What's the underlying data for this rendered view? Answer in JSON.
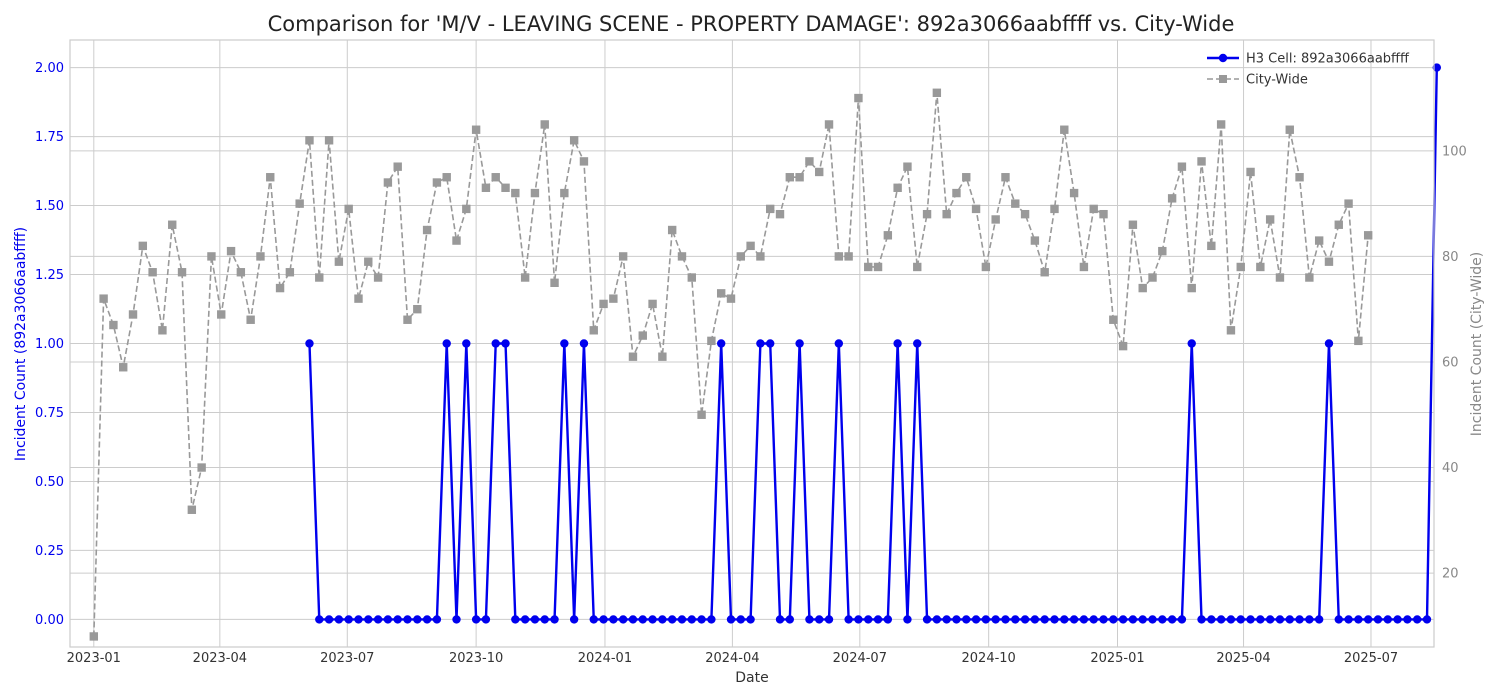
{
  "chart_data": {
    "type": "line",
    "title": "Comparison for 'M/V - LEAVING SCENE - PROPERTY DAMAGE': 892a3066aabffff vs. City-Wide",
    "xlabel": "Date",
    "ylabel_left": "Incident Count (892a3066aabffff)",
    "ylabel_right": "Incident Count (City-Wide)",
    "x_ticks": [
      "2023-01",
      "2023-04",
      "2023-07",
      "2023-10",
      "2024-01",
      "2024-04",
      "2024-07",
      "2024-10",
      "2025-01",
      "2025-04",
      "2025-07"
    ],
    "xlim": [
      "2022-12-15",
      "2025-08-15"
    ],
    "ylim_left": [
      -0.1,
      2.1
    ],
    "y_ticks_left": [
      0.0,
      0.25,
      0.5,
      0.75,
      1.0,
      1.25,
      1.5,
      1.75,
      2.0
    ],
    "ylim_right": [
      6,
      121
    ],
    "y_ticks_right": [
      20,
      40,
      60,
      80,
      100
    ],
    "grid": true,
    "legend_position": "top-right",
    "colors": {
      "h3": "#0000ee",
      "city": "#999999",
      "left_axis_text": "#0000ee",
      "right_axis_text": "#888888"
    },
    "series": [
      {
        "name": "H3 Cell: 892a3066aabffff",
        "axis": "left",
        "start": "2023-06-04",
        "values": [
          1,
          0,
          0,
          0,
          0,
          0,
          0,
          0,
          0,
          0,
          0,
          0,
          0,
          0,
          1,
          0,
          1,
          0,
          0,
          1,
          1,
          0,
          0,
          0,
          0,
          0,
          1,
          0,
          1,
          0,
          0,
          0,
          0,
          0,
          0,
          0,
          0,
          0,
          0,
          0,
          0,
          0,
          1,
          0,
          0,
          0,
          1,
          1,
          0,
          0,
          1,
          0,
          0,
          0,
          1,
          0,
          0,
          0,
          0,
          0,
          1,
          0,
          1,
          0,
          0,
          0,
          0,
          0,
          0,
          0,
          0,
          0,
          0,
          0,
          0,
          0,
          0,
          0,
          0,
          0,
          0,
          0,
          0,
          0,
          0,
          0,
          0,
          0,
          0,
          0,
          1,
          0,
          0,
          0,
          0,
          0,
          0,
          0,
          0,
          0,
          0,
          0,
          0,
          0,
          1,
          0,
          0,
          0,
          0,
          0,
          0,
          0,
          0,
          0,
          0,
          2
        ]
      },
      {
        "name": "City-Wide",
        "axis": "right",
        "start": "2023-01-01",
        "values": [
          8,
          72,
          67,
          59,
          69,
          82,
          77,
          66,
          86,
          77,
          32,
          40,
          80,
          69,
          81,
          77,
          68,
          80,
          95,
          74,
          77,
          90,
          102,
          76,
          102,
          79,
          89,
          72,
          79,
          76,
          94,
          97,
          68,
          70,
          85,
          94,
          95,
          83,
          89,
          104,
          93,
          95,
          93,
          92,
          76,
          92,
          105,
          75,
          92,
          102,
          98,
          66,
          71,
          72,
          80,
          61,
          65,
          71,
          61,
          85,
          80,
          76,
          50,
          64,
          73,
          72,
          80,
          82,
          80,
          89,
          88,
          95,
          95,
          98,
          96,
          105,
          80,
          80,
          110,
          78,
          78,
          84,
          93,
          97,
          78,
          88,
          111,
          88,
          92,
          95,
          89,
          78,
          87,
          95,
          90,
          88,
          83,
          77,
          89,
          104,
          92,
          78,
          89,
          88,
          68,
          63,
          86,
          74,
          76,
          81,
          91,
          97,
          74,
          98,
          82,
          105,
          66,
          78,
          96,
          78,
          87,
          76,
          104,
          95,
          76,
          83,
          79,
          86,
          90,
          64,
          84
        ]
      }
    ]
  }
}
